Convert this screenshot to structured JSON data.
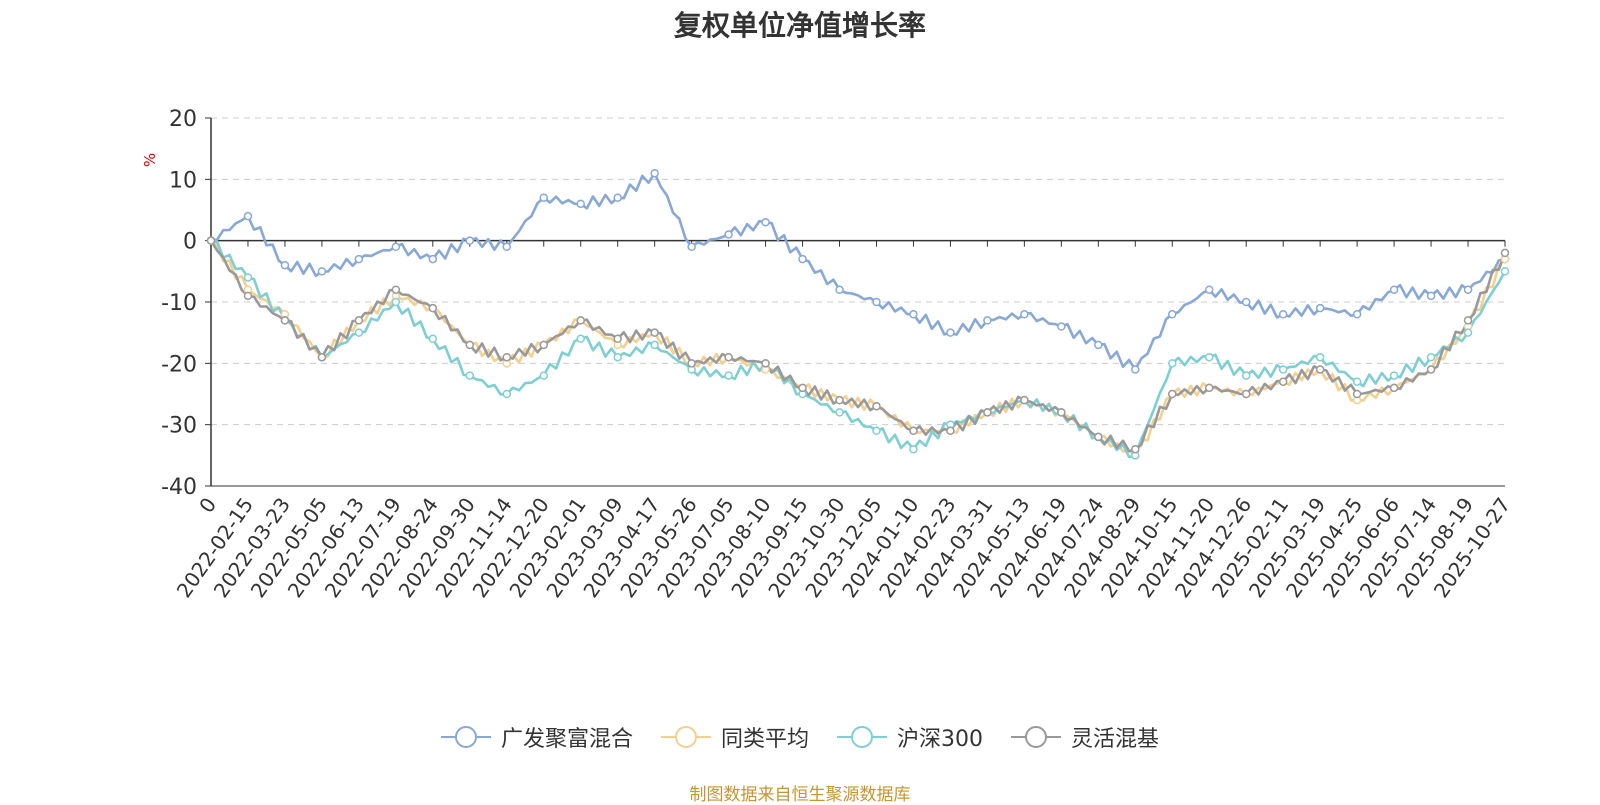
{
  "chart_data": {
    "type": "line",
    "title": "复权单位净值增长率",
    "ylabel": "%",
    "xlabel": "",
    "ylim": [
      -40,
      20
    ],
    "yticks": [
      20,
      10,
      0,
      -10,
      -20,
      -30,
      -40
    ],
    "grid": true,
    "legend_position": "bottom",
    "categories": [
      "0",
      "2022-02-15",
      "2022-03-23",
      "2022-05-05",
      "2022-06-13",
      "2022-07-19",
      "2022-08-24",
      "2022-09-30",
      "2022-11-14",
      "2022-12-20",
      "2023-02-01",
      "2023-03-09",
      "2023-04-17",
      "2023-05-26",
      "2023-07-05",
      "2023-08-10",
      "2023-09-15",
      "2023-10-30",
      "2023-12-05",
      "2024-01-10",
      "2024-02-23",
      "2024-03-31",
      "2024-05-13",
      "2024-06-19",
      "2024-07-24",
      "2024-08-29",
      "2024-10-15",
      "2024-11-20",
      "2024-12-26",
      "2025-02-11",
      "2025-03-19",
      "2025-04-25",
      "2025-06-06",
      "2025-07-14",
      "2025-08-19",
      "2025-10-27"
    ],
    "series": [
      {
        "name": "广发聚富混合",
        "color": "#88a8d8",
        "values": [
          0,
          4,
          -4,
          -5,
          -3,
          -1,
          -3,
          0,
          -1,
          7,
          6,
          7,
          11,
          -1,
          1,
          3,
          -3,
          -8,
          -10,
          -12,
          -15,
          -13,
          -12,
          -14,
          -17,
          -21,
          -12,
          -8,
          -10,
          -12,
          -11,
          -12,
          -8,
          -9,
          -8,
          -3
        ]
      },
      {
        "name": "同类平均",
        "color": "#f5cf8e",
        "values": [
          0,
          -8,
          -12,
          -19,
          -13,
          -9,
          -11,
          -17,
          -20,
          -17,
          -13,
          -17,
          -15,
          -20,
          -19,
          -21,
          -24,
          -26,
          -27,
          -31,
          -31,
          -28,
          -26,
          -28,
          -32,
          -35,
          -25,
          -24,
          -25,
          -23,
          -21,
          -26,
          -24,
          -21,
          -14,
          -3
        ]
      },
      {
        "name": "沪深300",
        "color": "#7ecfd4",
        "values": [
          0,
          -6,
          -13,
          -19,
          -15,
          -10,
          -16,
          -22,
          -25,
          -22,
          -16,
          -19,
          -17,
          -21,
          -22,
          -20,
          -25,
          -28,
          -31,
          -34,
          -30,
          -28,
          -26,
          -28,
          -32,
          -35,
          -20,
          -19,
          -22,
          -21,
          -19,
          -23,
          -22,
          -19,
          -15,
          -5
        ]
      },
      {
        "name": "灵活混基",
        "color": "#999999",
        "values": [
          0,
          -9,
          -13,
          -19,
          -13,
          -8,
          -11,
          -17,
          -19,
          -17,
          -13,
          -16,
          -15,
          -20,
          -19,
          -20,
          -24,
          -26,
          -27,
          -31,
          -31,
          -28,
          -26,
          -28,
          -32,
          -34,
          -25,
          -24,
          -25,
          -23,
          -21,
          -25,
          -24,
          -21,
          -13,
          -2
        ]
      }
    ]
  },
  "legend": {
    "items": [
      {
        "label": "广发聚富混合",
        "color": "#88a8d8"
      },
      {
        "label": "同类平均",
        "color": "#f5cf8e"
      },
      {
        "label": "沪深300",
        "color": "#7ecfd4"
      },
      {
        "label": "灵活混基",
        "color": "#999999"
      }
    ]
  },
  "source_note": "制图数据来自恒生聚源数据库"
}
